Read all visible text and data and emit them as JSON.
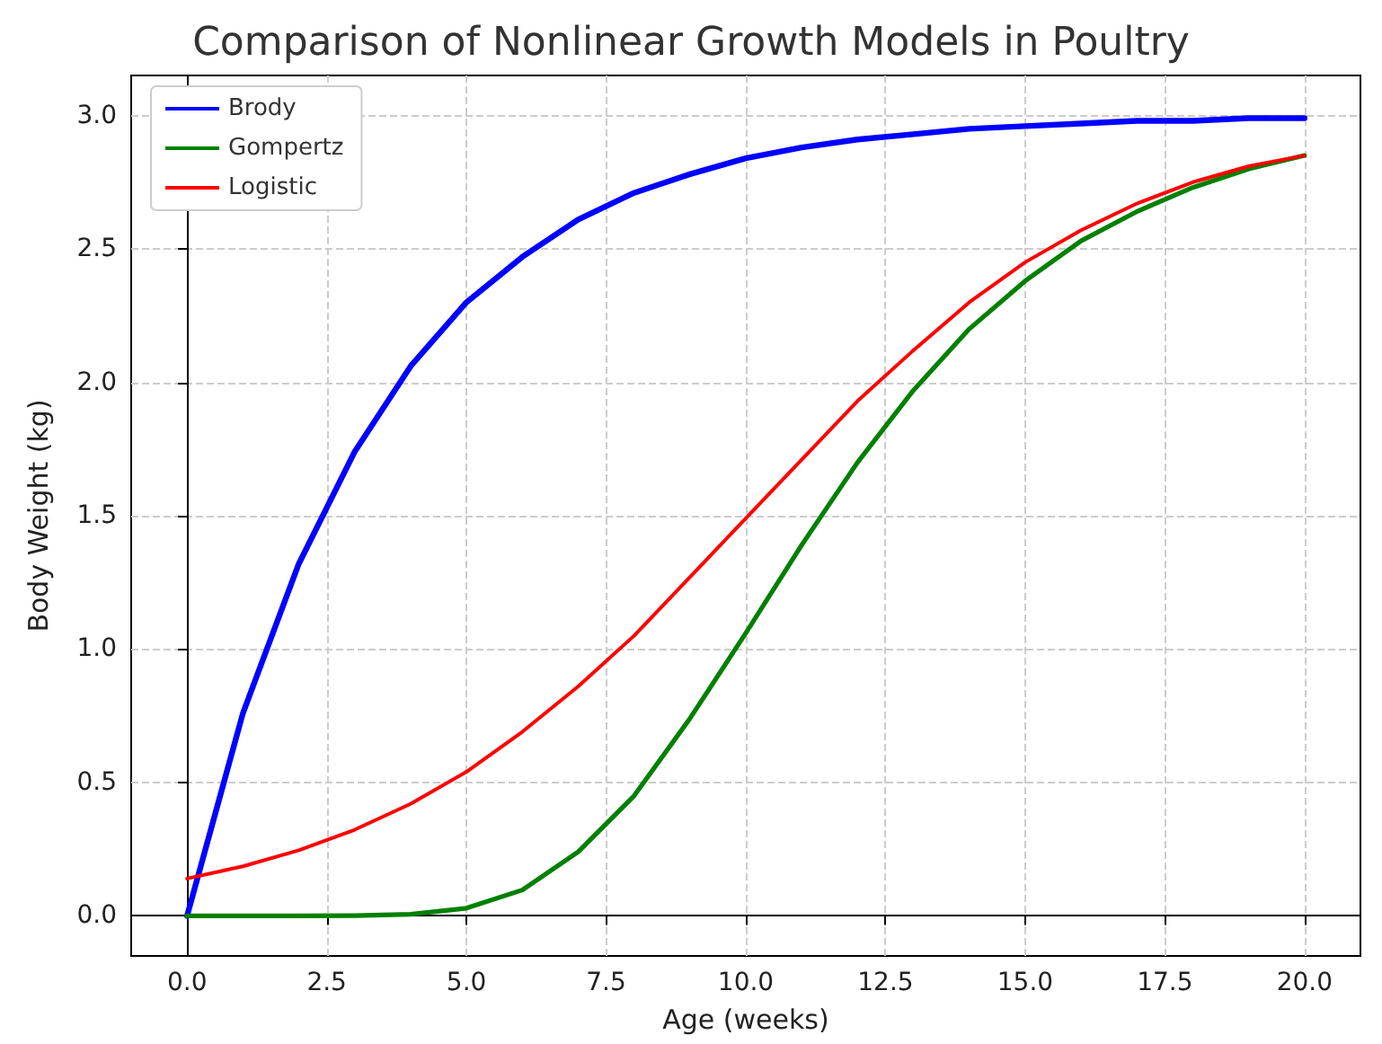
{
  "chart_data": {
    "type": "line",
    "title": "Comparison of Nonlinear Growth Models in Poultry",
    "xlabel": "Age (weeks)",
    "ylabel": "Body Weight (kg)",
    "x": [
      0,
      1,
      2,
      3,
      4,
      5,
      6,
      7,
      8,
      9,
      10,
      11,
      12,
      13,
      14,
      15,
      16,
      17,
      18,
      19,
      20
    ],
    "series": [
      {
        "name": "Brody",
        "color": "#0000ff",
        "values": [
          0,
          0.76,
          1.32,
          1.74,
          2.06,
          2.3,
          2.47,
          2.61,
          2.71,
          2.78,
          2.84,
          2.88,
          2.91,
          2.93,
          2.95,
          2.96,
          2.97,
          2.98,
          2.98,
          2.99,
          2.99
        ]
      },
      {
        "name": "Gompertz",
        "color": "#008000",
        "values": [
          0,
          0,
          0,
          0.001,
          0.006,
          0.029,
          0.097,
          0.24,
          0.45,
          0.74,
          1.06,
          1.39,
          1.7,
          1.97,
          2.2,
          2.38,
          2.53,
          2.64,
          2.73,
          2.8,
          2.85
        ]
      },
      {
        "name": "Logistic",
        "color": "#ff0000",
        "values": [
          0.14,
          0.186,
          0.246,
          0.323,
          0.42,
          0.54,
          0.69,
          0.86,
          1.05,
          1.27,
          1.49,
          1.71,
          1.93,
          2.12,
          2.3,
          2.45,
          2.57,
          2.67,
          2.75,
          2.81,
          2.85
        ]
      }
    ],
    "xlim": [
      -1,
      21
    ],
    "xticks": [
      {
        "value": 0,
        "label": "0.0"
      },
      {
        "value": 2.5,
        "label": "2.5"
      },
      {
        "value": 5,
        "label": "5.0"
      },
      {
        "value": 7.5,
        "label": "7.5"
      },
      {
        "value": 10,
        "label": "10.0"
      },
      {
        "value": 12.5,
        "label": "12.5"
      },
      {
        "value": 15,
        "label": "15.0"
      },
      {
        "value": 17.5,
        "label": "17.5"
      },
      {
        "value": 20,
        "label": "20.0"
      }
    ],
    "ylim": [
      -0.15,
      3.15
    ],
    "yticks": [
      {
        "value": 0,
        "label": "0.0"
      },
      {
        "value": 0.5,
        "label": "0.5"
      },
      {
        "value": 1,
        "label": "1.0"
      },
      {
        "value": 1.5,
        "label": "1.5"
      },
      {
        "value": 2,
        "label": "2.0"
      },
      {
        "value": 2.5,
        "label": "2.5"
      },
      {
        "value": 3,
        "label": "3.0"
      }
    ],
    "grid": true,
    "legend": "top left",
    "marker": "none",
    "line_style": "solid"
  }
}
